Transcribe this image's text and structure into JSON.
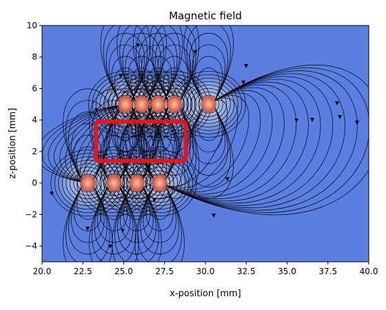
{
  "chart_data": {
    "type": "streamplot",
    "title": "Magnetic field",
    "xlabel": "x-position [mm]",
    "ylabel": "z-position [mm]",
    "xlim": [
      20.0,
      40.0
    ],
    "ylim": [
      -5,
      10
    ],
    "xticks": [
      "20.0",
      "22.5",
      "25.0",
      "27.5",
      "30.0",
      "32.5",
      "35.0",
      "37.5",
      "40.0"
    ],
    "yticks": [
      "10",
      "8",
      "6",
      "4",
      "2",
      "0",
      "−2",
      "−4"
    ],
    "background_colormap": "coolwarm (field magnitude)",
    "streamline_color": "#000000",
    "upper_row_sources": [
      {
        "x": 25.1,
        "z": 5.0
      },
      {
        "x": 26.1,
        "z": 5.0
      },
      {
        "x": 27.1,
        "z": 5.0
      },
      {
        "x": 28.1,
        "z": 5.0
      },
      {
        "x": 30.2,
        "z": 5.0
      }
    ],
    "lower_row_sources": [
      {
        "x": 22.8,
        "z": 0.0
      },
      {
        "x": 24.4,
        "z": 0.0
      },
      {
        "x": 25.8,
        "z": 0.0
      },
      {
        "x": 27.2,
        "z": 0.0
      }
    ],
    "highlight_box": {
      "x0": 23.3,
      "x1": 28.8,
      "z0": 1.4,
      "z1": 3.9,
      "color": "#ee1111"
    }
  }
}
